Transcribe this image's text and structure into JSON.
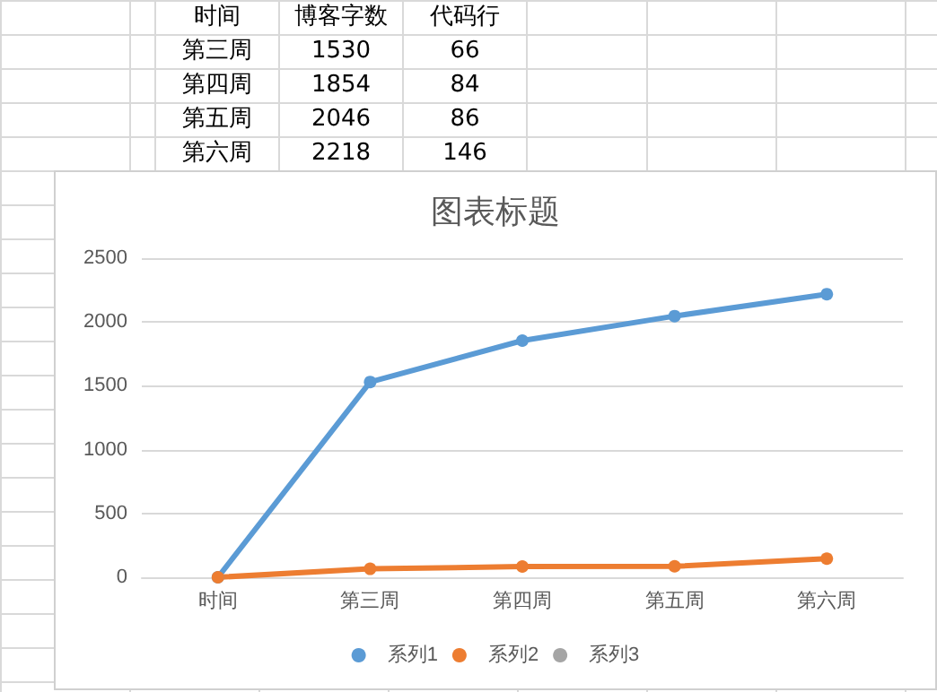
{
  "chart_data": {
    "type": "line",
    "title": "图表标题",
    "categories": [
      "时间",
      "第三周",
      "第四周",
      "第五周",
      "第六周"
    ],
    "series": [
      {
        "name": "系列1",
        "color": "#5b9bd5",
        "values": [
          0,
          1530,
          1854,
          2046,
          2218
        ]
      },
      {
        "name": "系列2",
        "color": "#ed7d31",
        "values": [
          0,
          66,
          84,
          86,
          146
        ]
      },
      {
        "name": "系列3",
        "color": "#a5a5a5",
        "values": [
          null,
          null,
          null,
          null,
          null
        ]
      }
    ],
    "annotations": [
      "时间",
      "博客字数",
      "代码行",
      "第三周",
      "1530",
      "66",
      "第四周",
      "1854",
      "84",
      "第五周",
      "2046",
      "86",
      "第六周",
      "2218",
      "146"
    ],
    "ylim": [
      0,
      2500
    ],
    "yticks": [
      0,
      500,
      1000,
      1500,
      2000,
      2500
    ],
    "grid": "y",
    "legend": "bottom",
    "marker": "circle",
    "line_style": "solid"
  }
}
